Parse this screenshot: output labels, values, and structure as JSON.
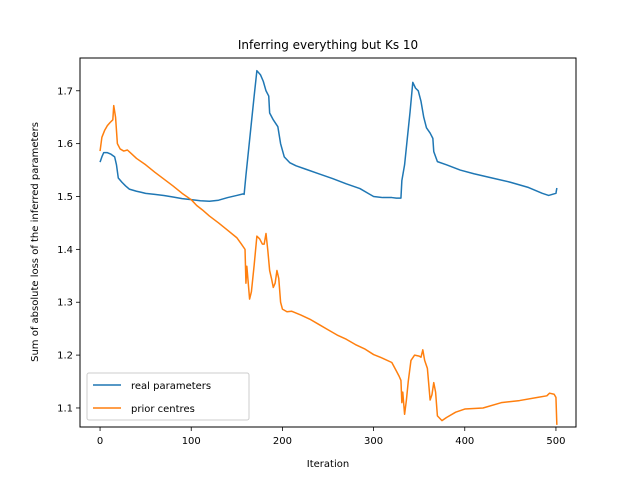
{
  "chart_data": {
    "type": "line",
    "title": "Inferring everything but Ks 10",
    "xlabel": "Iteration",
    "ylabel": "Sum of absolute loss of the inferred parameters",
    "xlim": [
      -22,
      522
    ],
    "ylim": [
      1.064,
      1.762
    ],
    "xticks": [
      0,
      100,
      200,
      300,
      400,
      500
    ],
    "yticks": [
      1.1,
      1.2,
      1.3,
      1.4,
      1.5,
      1.6,
      1.7
    ],
    "xtick_labels": [
      "0",
      "100",
      "200",
      "300",
      "400",
      "500"
    ],
    "ytick_labels": [
      "1.1",
      "1.2",
      "1.3",
      "1.4",
      "1.5",
      "1.6",
      "1.7"
    ],
    "grid": false,
    "legend_position": "lower left",
    "series": [
      {
        "name": "real parameters",
        "color": "#1f77b4",
        "points": [
          [
            0,
            1.565
          ],
          [
            2,
            1.575
          ],
          [
            4,
            1.583
          ],
          [
            8,
            1.583
          ],
          [
            12,
            1.58
          ],
          [
            16,
            1.575
          ],
          [
            18,
            1.56
          ],
          [
            20,
            1.535
          ],
          [
            24,
            1.527
          ],
          [
            28,
            1.52
          ],
          [
            32,
            1.514
          ],
          [
            40,
            1.51
          ],
          [
            45,
            1.508
          ],
          [
            50,
            1.506
          ],
          [
            60,
            1.504
          ],
          [
            70,
            1.502
          ],
          [
            80,
            1.499
          ],
          [
            90,
            1.496
          ],
          [
            100,
            1.494
          ],
          [
            110,
            1.492
          ],
          [
            120,
            1.491
          ],
          [
            130,
            1.493
          ],
          [
            140,
            1.498
          ],
          [
            150,
            1.502
          ],
          [
            157,
            1.505
          ],
          [
            158,
            1.504
          ],
          [
            160,
            1.54
          ],
          [
            163,
            1.59
          ],
          [
            166,
            1.64
          ],
          [
            169,
            1.69
          ],
          [
            172,
            1.738
          ],
          [
            176,
            1.73
          ],
          [
            179,
            1.718
          ],
          [
            182,
            1.7
          ],
          [
            185,
            1.69
          ],
          [
            186,
            1.658
          ],
          [
            190,
            1.645
          ],
          [
            195,
            1.632
          ],
          [
            198,
            1.6
          ],
          [
            202,
            1.575
          ],
          [
            208,
            1.564
          ],
          [
            215,
            1.558
          ],
          [
            225,
            1.552
          ],
          [
            240,
            1.543
          ],
          [
            255,
            1.534
          ],
          [
            270,
            1.524
          ],
          [
            285,
            1.515
          ],
          [
            295,
            1.505
          ],
          [
            300,
            1.5
          ],
          [
            310,
            1.498
          ],
          [
            320,
            1.498
          ],
          [
            325,
            1.497
          ],
          [
            330,
            1.497
          ],
          [
            331,
            1.53
          ],
          [
            334,
            1.56
          ],
          [
            337,
            1.61
          ],
          [
            340,
            1.66
          ],
          [
            343,
            1.716
          ],
          [
            346,
            1.705
          ],
          [
            349,
            1.7
          ],
          [
            352,
            1.68
          ],
          [
            355,
            1.65
          ],
          [
            358,
            1.63
          ],
          [
            362,
            1.62
          ],
          [
            365,
            1.61
          ],
          [
            366,
            1.585
          ],
          [
            370,
            1.566
          ],
          [
            380,
            1.56
          ],
          [
            395,
            1.55
          ],
          [
            410,
            1.543
          ],
          [
            430,
            1.535
          ],
          [
            450,
            1.527
          ],
          [
            470,
            1.517
          ],
          [
            485,
            1.506
          ],
          [
            492,
            1.502
          ],
          [
            500,
            1.506
          ],
          [
            501,
            1.516
          ]
        ]
      },
      {
        "name": "prior centres",
        "color": "#ff7f0e",
        "points": [
          [
            0,
            1.586
          ],
          [
            2,
            1.612
          ],
          [
            5,
            1.625
          ],
          [
            8,
            1.634
          ],
          [
            11,
            1.64
          ],
          [
            14,
            1.645
          ],
          [
            15,
            1.672
          ],
          [
            17,
            1.65
          ],
          [
            19,
            1.6
          ],
          [
            22,
            1.59
          ],
          [
            26,
            1.586
          ],
          [
            30,
            1.588
          ],
          [
            35,
            1.58
          ],
          [
            40,
            1.572
          ],
          [
            50,
            1.56
          ],
          [
            60,
            1.546
          ],
          [
            70,
            1.533
          ],
          [
            80,
            1.52
          ],
          [
            90,
            1.506
          ],
          [
            100,
            1.494
          ],
          [
            106,
            1.483
          ],
          [
            112,
            1.475
          ],
          [
            120,
            1.463
          ],
          [
            130,
            1.45
          ],
          [
            140,
            1.436
          ],
          [
            150,
            1.422
          ],
          [
            155,
            1.41
          ],
          [
            159,
            1.4
          ],
          [
            160,
            1.336
          ],
          [
            161,
            1.368
          ],
          [
            164,
            1.306
          ],
          [
            166,
            1.32
          ],
          [
            169,
            1.37
          ],
          [
            172,
            1.425
          ],
          [
            175,
            1.42
          ],
          [
            178,
            1.41
          ],
          [
            180,
            1.41
          ],
          [
            182,
            1.43
          ],
          [
            184,
            1.398
          ],
          [
            186,
            1.36
          ],
          [
            188,
            1.345
          ],
          [
            190,
            1.328
          ],
          [
            192,
            1.336
          ],
          [
            194,
            1.36
          ],
          [
            196,
            1.345
          ],
          [
            198,
            1.3
          ],
          [
            200,
            1.287
          ],
          [
            205,
            1.282
          ],
          [
            210,
            1.283
          ],
          [
            220,
            1.276
          ],
          [
            230,
            1.268
          ],
          [
            240,
            1.258
          ],
          [
            250,
            1.248
          ],
          [
            260,
            1.238
          ],
          [
            270,
            1.23
          ],
          [
            280,
            1.22
          ],
          [
            290,
            1.212
          ],
          [
            300,
            1.201
          ],
          [
            310,
            1.194
          ],
          [
            320,
            1.186
          ],
          [
            325,
            1.17
          ],
          [
            328,
            1.16
          ],
          [
            330,
            1.152
          ],
          [
            331,
            1.11
          ],
          [
            332,
            1.13
          ],
          [
            334,
            1.088
          ],
          [
            336,
            1.115
          ],
          [
            338,
            1.15
          ],
          [
            341,
            1.19
          ],
          [
            345,
            1.2
          ],
          [
            350,
            1.198
          ],
          [
            352,
            1.196
          ],
          [
            354,
            1.21
          ],
          [
            356,
            1.19
          ],
          [
            359,
            1.175
          ],
          [
            362,
            1.115
          ],
          [
            364,
            1.125
          ],
          [
            366,
            1.148
          ],
          [
            368,
            1.13
          ],
          [
            370,
            1.085
          ],
          [
            375,
            1.076
          ],
          [
            380,
            1.082
          ],
          [
            390,
            1.092
          ],
          [
            400,
            1.098
          ],
          [
            420,
            1.1
          ],
          [
            440,
            1.11
          ],
          [
            460,
            1.114
          ],
          [
            480,
            1.12
          ],
          [
            490,
            1.123
          ],
          [
            493,
            1.128
          ],
          [
            498,
            1.126
          ],
          [
            500,
            1.12
          ],
          [
            501,
            1.068
          ]
        ]
      }
    ]
  }
}
